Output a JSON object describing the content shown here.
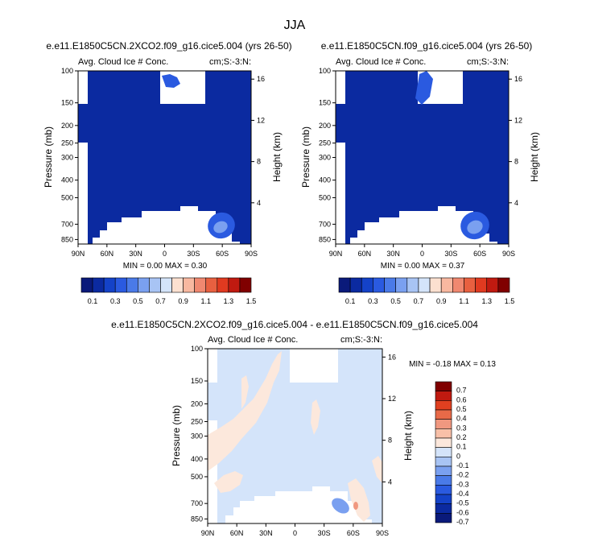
{
  "figure": {
    "title": "JJA"
  },
  "chart_data": [
    {
      "type": "heatmap",
      "title": "e.e11.E1850C5CN.2XCO2.f09_g16.cice5.004 (yrs 26-50)",
      "subtitle_left": "Avg. Cloud Ice # Conc.",
      "subtitle_right": "cm;S:-3:N:",
      "xlabel": "",
      "ylabel": "Pressure (mb)",
      "ylabel_right": "Height (km)",
      "x_ticks": [
        "90N",
        "60N",
        "30N",
        "0",
        "30S",
        "60S",
        "90S"
      ],
      "y_ticks": [
        100,
        150,
        200,
        250,
        300,
        400,
        500,
        700,
        850
      ],
      "height_ticks": [
        4,
        8,
        12,
        16
      ],
      "xlim": [
        90,
        -90
      ],
      "ylim": [
        100,
        900
      ],
      "stats": "MIN =   0.00   MAX =   0.30",
      "colorbar_labels": [
        "0.1",
        "0.3",
        "0.5",
        "0.7",
        "0.9",
        "1.1",
        "1.3",
        "1.5"
      ],
      "max_location": {
        "lat": -48,
        "pressure": 720
      }
    },
    {
      "type": "heatmap",
      "title": "e.e11.E1850C5CN.f09_g16.cice5.004 (yrs 26-50)",
      "subtitle_left": "Avg. Cloud Ice # Conc.",
      "subtitle_right": "cm;S:-3:N:",
      "xlabel": "",
      "ylabel": "Pressure (mb)",
      "ylabel_right": "Height (km)",
      "x_ticks": [
        "90N",
        "60N",
        "30N",
        "0",
        "30S",
        "60S",
        "90S"
      ],
      "y_ticks": [
        100,
        150,
        200,
        250,
        300,
        400,
        500,
        700,
        850
      ],
      "height_ticks": [
        4,
        8,
        12,
        16
      ],
      "xlim": [
        90,
        -90
      ],
      "ylim": [
        100,
        900
      ],
      "stats": "MIN =   0.00   MAX =   0.37",
      "colorbar_labels": [
        "0.1",
        "0.3",
        "0.5",
        "0.7",
        "0.9",
        "1.1",
        "1.3",
        "1.5"
      ],
      "max_location": {
        "lat": -48,
        "pressure": 720
      }
    },
    {
      "type": "heatmap",
      "title": "e.e11.E1850C5CN.2XCO2.f09_g16.cice5.004 - e.e11.E1850C5CN.f09_g16.cice5.004",
      "subtitle_left": "Avg. Cloud Ice # Conc.",
      "subtitle_right": "cm;S:-3:N:",
      "xlabel": "",
      "ylabel": "Pressure (mb)",
      "ylabel_right": "Height (km)",
      "x_ticks": [
        "90N",
        "60N",
        "30N",
        "0",
        "30S",
        "60S",
        "90S"
      ],
      "y_ticks": [
        100,
        150,
        200,
        250,
        300,
        400,
        500,
        700,
        850
      ],
      "height_ticks": [
        4,
        8,
        12,
        16
      ],
      "xlim": [
        90,
        -90
      ],
      "ylim": [
        100,
        900
      ],
      "stats": "MIN =  -0.18   MAX =   0.13",
      "colorbar_labels": [
        "0.7",
        "0.6",
        "0.5",
        "0.4",
        "0.3",
        "0.2",
        "0.1",
        "0",
        "-0.1",
        "-0.2",
        "-0.3",
        "-0.4",
        "-0.5",
        "-0.6",
        "-0.7"
      ]
    }
  ],
  "colors": {
    "seq_scale": [
      "#0a1a7a",
      "#0b2aa0",
      "#1442c8",
      "#2a5ae0",
      "#4a7ae8",
      "#7aa0f0",
      "#a8c4f4",
      "#d4e4fa",
      "#fce0d0",
      "#f8b8a0",
      "#f08870",
      "#e86040",
      "#e03a20",
      "#c01a10",
      "#800000"
    ],
    "div_scale": [
      "#0a1a7a",
      "#0b2aa0",
      "#1442c8",
      "#2a5ae0",
      "#4a7ae8",
      "#7aa0f0",
      "#a8c4f4",
      "#d4e4fa",
      "#fce8dc",
      "#f8c0a8",
      "#f09880",
      "#e86a48",
      "#e04020",
      "#c01a10",
      "#800000"
    ],
    "field_deep": "#0b2aa0",
    "field_light": "#2a5ae0",
    "field_core": "#7aa0f0",
    "diff_base": "#d4e4fa",
    "diff_pos": "#fce8dc",
    "diff_neg": "#7aa0f0",
    "diff_max": "#f09880"
  }
}
